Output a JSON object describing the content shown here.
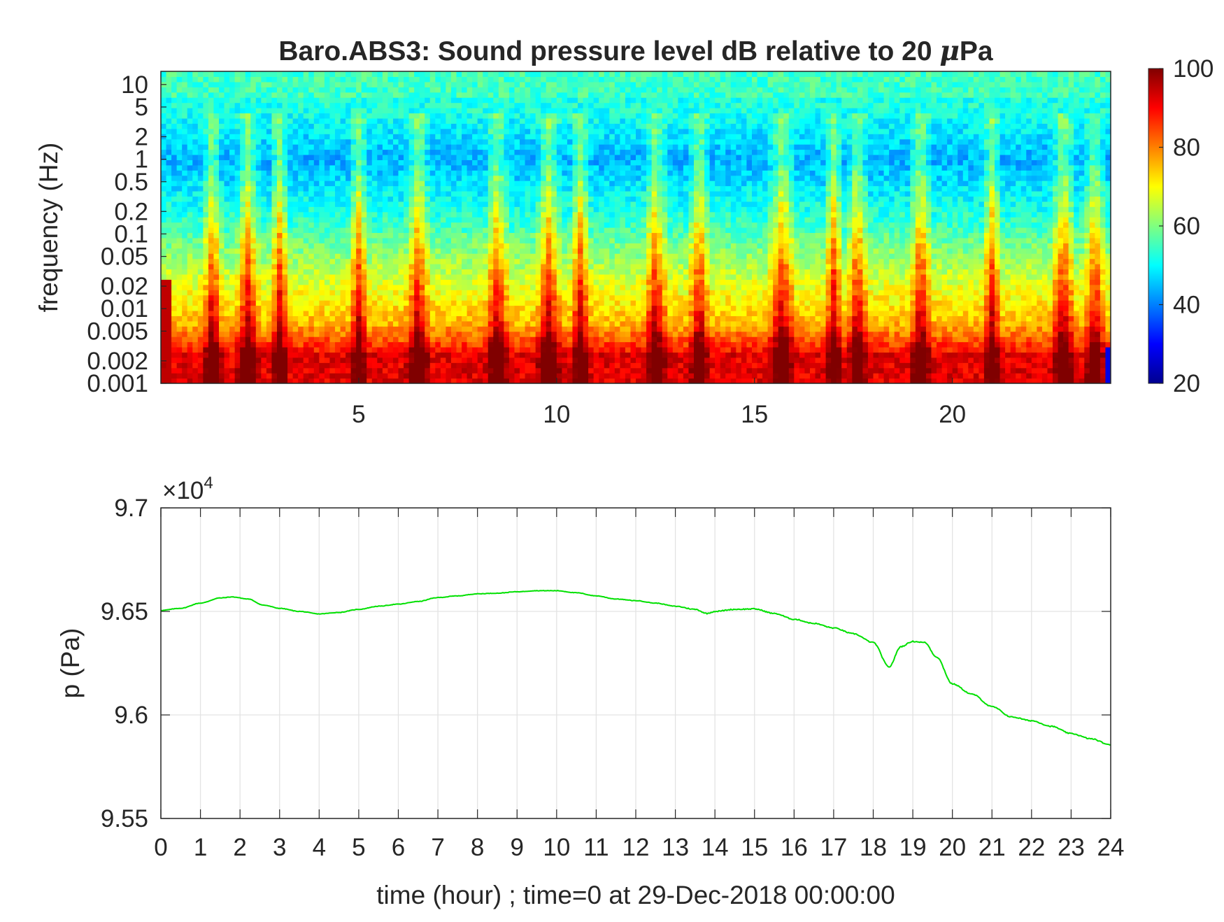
{
  "chart_data": [
    {
      "type": "heatmap",
      "title": "Baro.ABS3: Sound pressure level dB relative to 20 μPa",
      "title_parts": {
        "prefix": "Baro.ABS3: Sound pressure level dB relative to 20 ",
        "mu": "μ",
        "suffix": "Pa"
      },
      "ylabel": "frequency (Hz)",
      "xlabel": "",
      "y_scale": "log",
      "xlim": [
        0,
        24
      ],
      "ylim": [
        0.001,
        15
      ],
      "xticks": [
        5,
        10,
        15,
        20
      ],
      "yticks": [
        0.001,
        0.002,
        0.005,
        0.01,
        0.02,
        0.05,
        0.1,
        0.2,
        0.5,
        1,
        2,
        5,
        10
      ],
      "ytick_labels": [
        "0.001",
        "0.002",
        "0.005",
        "0.01",
        "0.02",
        "0.05",
        "0.1",
        "0.2",
        "0.5",
        "1",
        "2",
        "5",
        "10"
      ],
      "colormap": "jet",
      "clim": [
        20,
        100
      ],
      "colorbar_ticks": [
        20,
        40,
        60,
        80,
        100
      ],
      "colorbar_position": "right",
      "event_peaks_hour": [
        1.3,
        2.2,
        3.0,
        5.0,
        6.5,
        8.5,
        9.8,
        10.6,
        12.5,
        13.6,
        15.7,
        17.0,
        17.6,
        19.2,
        21.0,
        22.8,
        23.6
      ]
    },
    {
      "type": "line",
      "title": "",
      "xlabel": "time (hour) ; time=0 at 29-Dec-2018 00:00:00",
      "ylabel": "p (Pa)",
      "xlim": [
        0,
        24
      ],
      "ylim": [
        95500,
        97000
      ],
      "xticks": [
        0,
        1,
        2,
        3,
        4,
        5,
        6,
        7,
        8,
        9,
        10,
        11,
        12,
        13,
        14,
        15,
        16,
        17,
        18,
        19,
        20,
        21,
        22,
        23,
        24
      ],
      "yticks": [
        95500,
        96000,
        96500,
        97000
      ],
      "ytick_labels": [
        "9.55",
        "9.6",
        "9.65",
        "9.7"
      ],
      "exponent_label": {
        "base": "×10",
        "power": "4"
      },
      "grid": true,
      "series": [
        {
          "color": "#00e000",
          "x": [
            0,
            0.5,
            1,
            1.5,
            1.8,
            2.2,
            2.6,
            3,
            3.5,
            4,
            4.5,
            5,
            5.5,
            6,
            6.5,
            7,
            7.5,
            8,
            8.5,
            9,
            9.5,
            10,
            10.5,
            11,
            11.5,
            12,
            12.5,
            13,
            13.5,
            13.8,
            14,
            14.5,
            15,
            15.5,
            16,
            16.5,
            17,
            17.5,
            18,
            18.4,
            18.7,
            19,
            19.3,
            19.6,
            20,
            20.5,
            21,
            21.5,
            22,
            22.5,
            23,
            23.5,
            24
          ],
          "y": [
            96505,
            96515,
            96540,
            96565,
            96570,
            96560,
            96530,
            96515,
            96500,
            96488,
            96495,
            96510,
            96525,
            96535,
            96548,
            96567,
            96575,
            96585,
            96588,
            96595,
            96600,
            96600,
            96590,
            96575,
            96560,
            96552,
            96540,
            96525,
            96510,
            96490,
            96500,
            96510,
            96512,
            96490,
            96462,
            96442,
            96420,
            96392,
            96350,
            96232,
            96330,
            96355,
            96350,
            96280,
            96150,
            96100,
            96040,
            95990,
            95972,
            95945,
            95910,
            95885,
            95855
          ]
        }
      ]
    }
  ]
}
